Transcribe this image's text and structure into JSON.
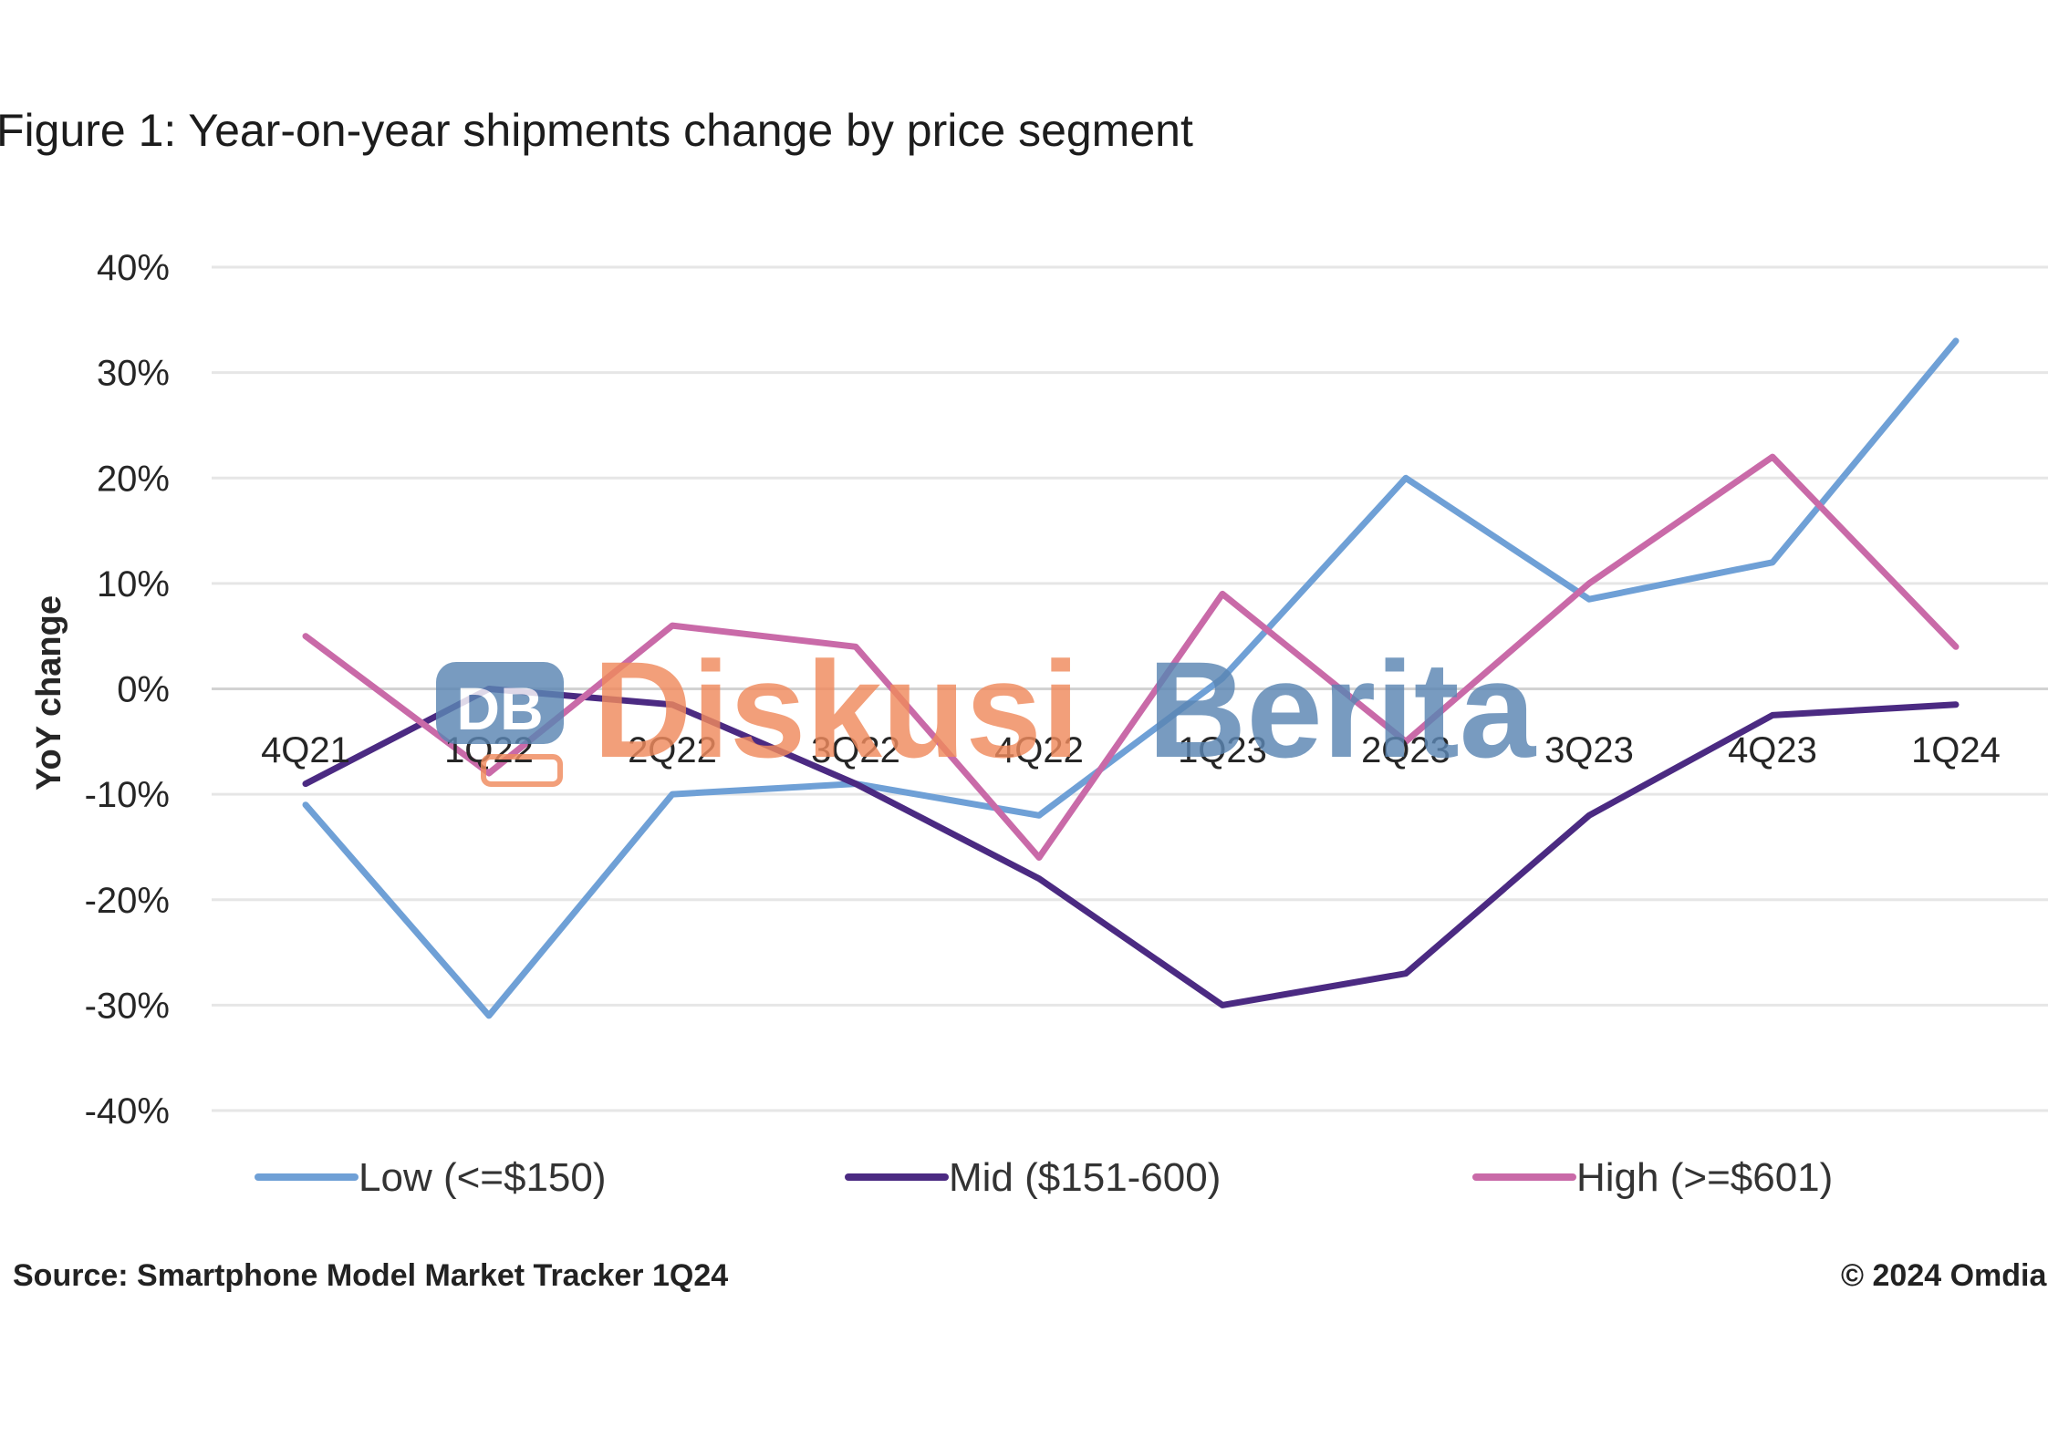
{
  "chart_data": {
    "type": "line",
    "title": "Figure 1: Year-on-year shipments change by price segment",
    "ylabel": "YoY change",
    "xlabel": "",
    "categories": [
      "4Q21",
      "1Q22",
      "2Q22",
      "3Q22",
      "4Q22",
      "1Q23",
      "2Q23",
      "3Q23",
      "4Q23",
      "1Q24"
    ],
    "y_ticks": [
      "40%",
      "30%",
      "20%",
      "10%",
      "0%",
      "-10%",
      "-20%",
      "-30%",
      "-40%"
    ],
    "ylim": [
      -40,
      40
    ],
    "grid": true,
    "legend_position": "bottom",
    "series": [
      {
        "name": "Low (<=$150)",
        "color": "#6fa0d6",
        "values": [
          -11,
          -31,
          -10,
          -9,
          -12,
          1,
          20,
          8.5,
          12,
          33
        ]
      },
      {
        "name": "Mid ($151-600)",
        "color": "#4b2a82",
        "values": [
          -9,
          0,
          -1.5,
          -9,
          -18,
          -30,
          -27,
          -12,
          -2.5,
          -1.5
        ]
      },
      {
        "name": "High (>=$601)",
        "color": "#c96aa8",
        "values": [
          5,
          -8,
          6,
          4,
          -16,
          9,
          -5,
          10,
          22,
          4
        ]
      }
    ],
    "source": "Source: Smartphone Model Market Tracker 1Q24",
    "copyright": "© 2024 Omdia"
  },
  "watermark": {
    "badge": "DB",
    "word1": "Diskusi",
    "word2": "Berita",
    "word1_color": "#f08a5d",
    "word2_color": "#5b86b3"
  }
}
